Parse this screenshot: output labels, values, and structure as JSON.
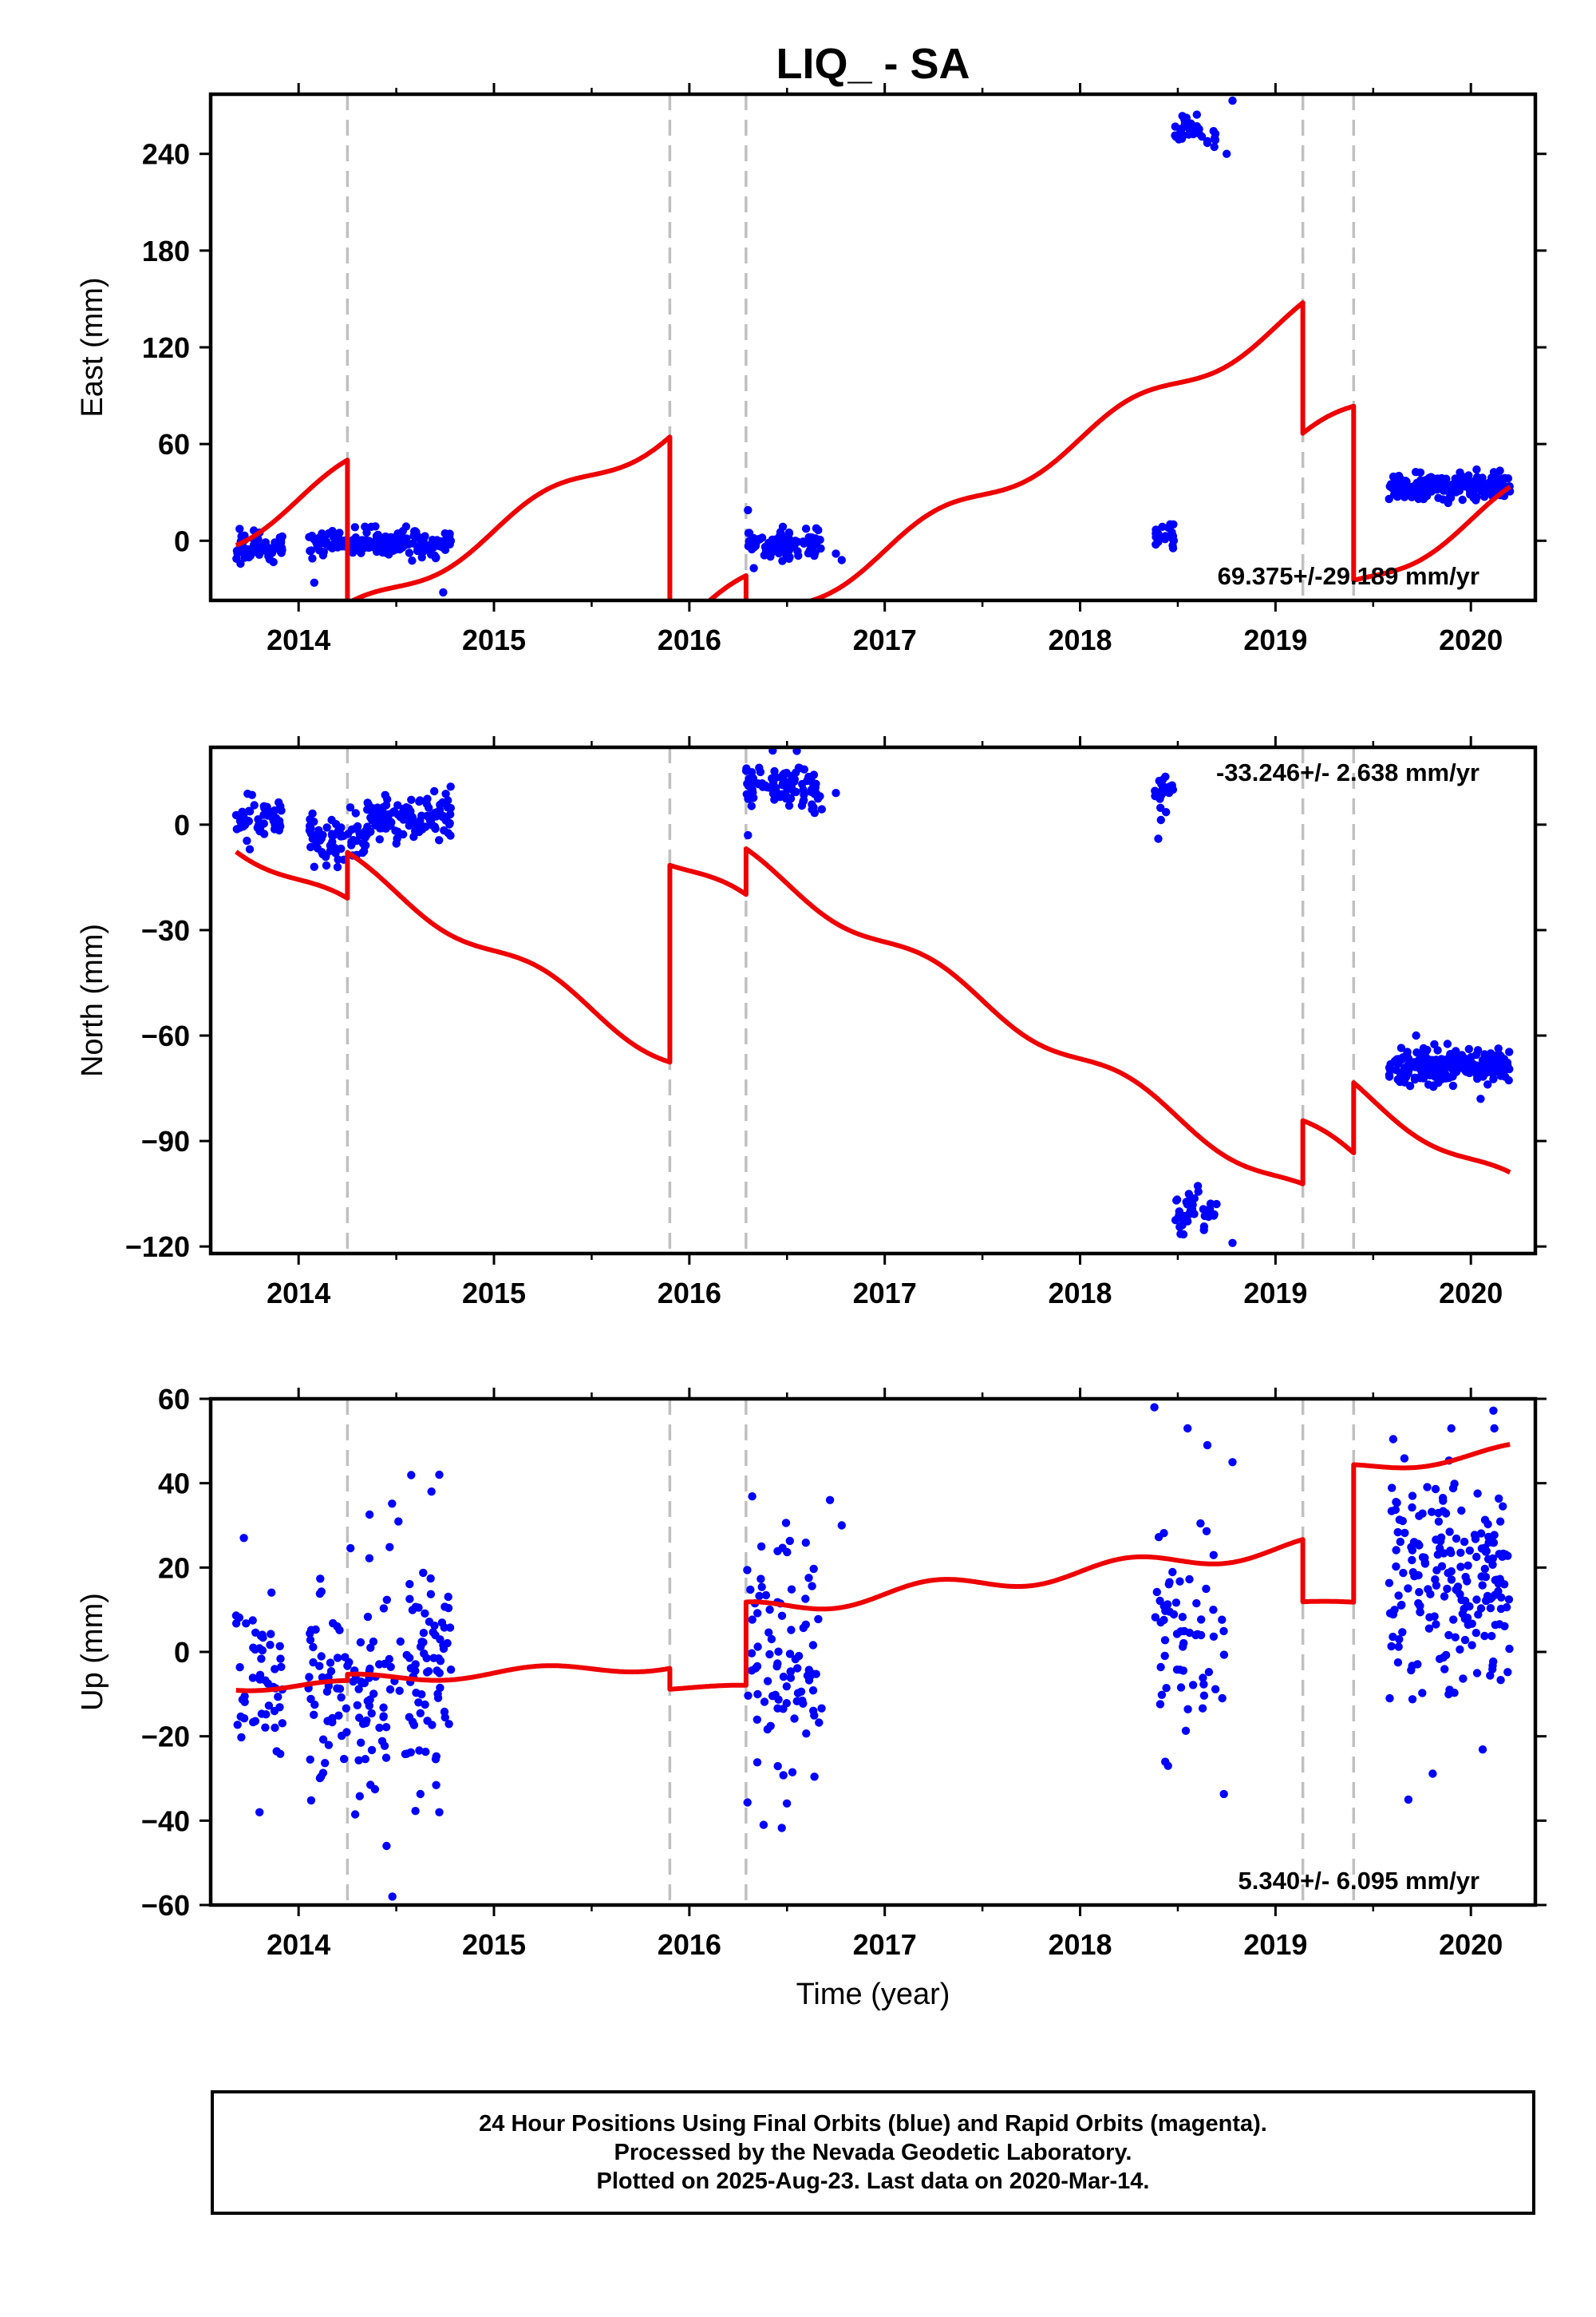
{
  "title": "LIQ_ - SA",
  "xlabel": "Time (year)",
  "colors": {
    "data": "#0000ff",
    "model": "#ee0000",
    "steps": "#c0c0c0",
    "frame": "#000000"
  },
  "chart_data": [
    {
      "type": "scatter",
      "ylabel": "East (mm)",
      "ylim": [
        -37,
        277
      ],
      "yticks": [
        0,
        60,
        120,
        180,
        240
      ],
      "ytick_labels": [
        "0",
        "60",
        "120",
        "180",
        "240"
      ],
      "xlim": [
        2013.55,
        2020.33
      ],
      "xticks": [
        2014,
        2015,
        2016,
        2017,
        2018,
        2019,
        2020
      ],
      "xtick_labels": [
        "2014",
        "2015",
        "2016",
        "2017",
        "2018",
        "2019",
        "2020"
      ],
      "step_epochs": [
        2014.25,
        2015.9,
        2016.29,
        2019.14,
        2019.4
      ],
      "rate_label": "69.375+/-29.189 mm/yr",
      "rate_position": "bottom-right",
      "data_clusters": [
        {
          "x0": 2013.68,
          "x1": 2013.92,
          "y": -3,
          "spread": 4.5,
          "n": 55,
          "outliers": []
        },
        {
          "x0": 2014.05,
          "x1": 2014.35,
          "y": -2,
          "spread": 4,
          "n": 70,
          "outliers": [
            [
              2014.08,
              -26
            ]
          ]
        },
        {
          "x0": 2014.35,
          "x1": 2014.78,
          "y": -2,
          "spread": 4,
          "n": 110,
          "outliers": [
            [
              2014.74,
              -32
            ]
          ]
        },
        {
          "x0": 2016.29,
          "x1": 2016.68,
          "y": -2,
          "spread": 4.5,
          "n": 90,
          "outliers": [
            [
              2016.3,
              19
            ],
            [
              2016.33,
              -17
            ],
            [
              2016.75,
              -8
            ],
            [
              2016.78,
              -12
            ]
          ]
        },
        {
          "x0": 2018.38,
          "x1": 2018.48,
          "y": 3,
          "spread": 4,
          "n": 22,
          "outliers": []
        },
        {
          "x0": 2018.48,
          "x1": 2018.7,
          "y": 254,
          "spread": 5,
          "n": 40,
          "outliers": [
            [
              2018.78,
              273
            ],
            [
              2018.75,
              240
            ]
          ]
        },
        {
          "x0": 2019.58,
          "x1": 2020.2,
          "y": 34,
          "spread": 4,
          "n": 230,
          "outliers": []
        }
      ],
      "model_segments": [
        {
          "x0": 2013.68,
          "x1": 2014.25,
          "offset": -9,
          "rate": 69.375,
          "amp": 7,
          "phase": 0.0
        },
        {
          "x0": 2014.25,
          "x1": 2015.9,
          "offset": -98,
          "rate": 69.375,
          "amp": 7,
          "phase": 0.0
        },
        {
          "x0": 2015.9,
          "x1": 2016.29,
          "offset": -222,
          "rate": 69.375,
          "amp": 7,
          "phase": 0.0
        },
        {
          "x0": 2016.29,
          "x1": 2019.14,
          "offset": -249,
          "rate": 69.375,
          "amp": 7,
          "phase": 0.0
        },
        {
          "x0": 2019.14,
          "x1": 2019.4,
          "offset": -330,
          "rate": 69.375,
          "amp": 7,
          "phase": 0.0
        },
        {
          "x0": 2019.4,
          "x1": 2020.2,
          "offset": -438,
          "rate": 69.375,
          "amp": 7,
          "phase": 0.0
        }
      ]
    },
    {
      "type": "scatter",
      "ylabel": "North (mm)",
      "ylim": [
        -122,
        22
      ],
      "yticks": [
        -120,
        -90,
        -60,
        -30,
        0
      ],
      "ytick_labels": [
        "−120",
        "−90",
        "−60",
        "−30",
        "0"
      ],
      "xlim": [
        2013.55,
        2020.33
      ],
      "xticks": [
        2014,
        2015,
        2016,
        2017,
        2018,
        2019,
        2020
      ],
      "xtick_labels": [
        "2014",
        "2015",
        "2016",
        "2017",
        "2018",
        "2019",
        "2020"
      ],
      "step_epochs": [
        2014.25,
        2015.9,
        2016.29,
        2019.14,
        2019.4
      ],
      "rate_label": "-33.246+/- 2.638 mm/yr",
      "rate_position": "top-right",
      "data_clusters": [
        {
          "x0": 2013.68,
          "x1": 2013.92,
          "y": 2,
          "spread": 2.5,
          "n": 55,
          "outliers": [
            [
              2013.75,
              -7
            ]
          ]
        },
        {
          "x0": 2014.05,
          "x1": 2014.35,
          "y": -4,
          "spread": 3,
          "n": 70,
          "outliers": [
            [
              2014.08,
              -12
            ]
          ]
        },
        {
          "x0": 2014.35,
          "x1": 2014.78,
          "y": 2,
          "spread": 3,
          "n": 110,
          "outliers": []
        },
        {
          "x0": 2016.29,
          "x1": 2016.68,
          "y": 10,
          "spread": 3,
          "n": 90,
          "outliers": [
            [
              2016.3,
              -3
            ],
            [
              2016.55,
              21
            ],
            [
              2016.75,
              9
            ]
          ]
        },
        {
          "x0": 2018.38,
          "x1": 2018.48,
          "y": 9,
          "spread": 3,
          "n": 22,
          "outliers": [
            [
              2018.4,
              -4
            ]
          ]
        },
        {
          "x0": 2018.48,
          "x1": 2018.7,
          "y": -110,
          "spread": 3,
          "n": 40,
          "outliers": [
            [
              2018.78,
              -119
            ]
          ]
        },
        {
          "x0": 2019.58,
          "x1": 2020.2,
          "y": -69,
          "spread": 2.5,
          "n": 230,
          "outliers": [
            [
              2019.72,
              -60
            ],
            [
              2020.05,
              -78
            ]
          ]
        }
      ],
      "model_segments": [
        {
          "x0": 2013.68,
          "x1": 2014.25,
          "offset": 1,
          "rate": -33.246,
          "amp": 3,
          "phase": 0.0
        },
        {
          "x0": 2014.25,
          "x1": 2015.9,
          "offset": 14,
          "rate": -33.246,
          "amp": 3,
          "phase": 0.0
        },
        {
          "x0": 2015.9,
          "x1": 2016.29,
          "offset": 70,
          "rate": -33.246,
          "amp": 3,
          "phase": 0.0
        },
        {
          "x0": 2016.29,
          "x1": 2019.14,
          "offset": 83,
          "rate": -33.246,
          "amp": 3,
          "phase": 0.0
        },
        {
          "x0": 2019.14,
          "x1": 2019.4,
          "offset": 101,
          "rate": -33.246,
          "amp": 3,
          "phase": 0.0
        },
        {
          "x0": 2019.4,
          "x1": 2020.2,
          "offset": 121,
          "rate": -33.246,
          "amp": 3,
          "phase": 0.0
        }
      ]
    },
    {
      "type": "scatter",
      "ylabel": "Up (mm)",
      "ylim": [
        -60,
        60
      ],
      "yticks": [
        -60,
        -40,
        -20,
        0,
        20,
        40,
        60
      ],
      "ytick_labels": [
        "−60",
        "−40",
        "−20",
        "0",
        "20",
        "40",
        "60"
      ],
      "xlim": [
        2013.55,
        2020.33
      ],
      "xticks": [
        2014,
        2015,
        2016,
        2017,
        2018,
        2019,
        2020
      ],
      "xtick_labels": [
        "2014",
        "2015",
        "2016",
        "2017",
        "2018",
        "2019",
        "2020"
      ],
      "step_epochs": [
        2014.25,
        2015.9,
        2016.29,
        2019.14,
        2019.4
      ],
      "rate_label": "5.340+/- 6.095 mm/yr",
      "rate_position": "bottom-right",
      "data_clusters": [
        {
          "x0": 2013.68,
          "x1": 2013.92,
          "y": -4,
          "spread": 13,
          "n": 50,
          "outliers": [
            [
              2013.8,
              -38
            ],
            [
              2013.72,
              27
            ]
          ]
        },
        {
          "x0": 2014.05,
          "x1": 2014.35,
          "y": -8,
          "spread": 12,
          "n": 70,
          "outliers": [
            [
              2014.45,
              -46
            ],
            [
              2014.48,
              -58
            ]
          ]
        },
        {
          "x0": 2014.35,
          "x1": 2014.78,
          "y": -2,
          "spread": 14,
          "n": 110,
          "outliers": [
            [
              2014.72,
              42
            ],
            [
              2014.68,
              38
            ],
            [
              2014.72,
              -38
            ]
          ]
        },
        {
          "x0": 2016.29,
          "x1": 2016.68,
          "y": -3,
          "spread": 15,
          "n": 90,
          "outliers": [
            [
              2016.38,
              -41
            ],
            [
              2016.72,
              36
            ],
            [
              2016.78,
              30
            ]
          ]
        },
        {
          "x0": 2018.38,
          "x1": 2018.48,
          "y": 2,
          "spread": 14,
          "n": 22,
          "outliers": [
            [
              2018.38,
              58
            ]
          ]
        },
        {
          "x0": 2018.48,
          "x1": 2018.78,
          "y": 4,
          "spread": 13,
          "n": 40,
          "outliers": [
            [
              2018.55,
              53
            ],
            [
              2018.78,
              45
            ],
            [
              2018.45,
              -27
            ]
          ]
        },
        {
          "x0": 2019.58,
          "x1": 2020.2,
          "y": 17,
          "spread": 14,
          "n": 200,
          "outliers": [
            [
              2019.68,
              -35
            ],
            [
              2019.9,
              53
            ],
            [
              2020.12,
              53
            ]
          ]
        }
      ],
      "model_segments": [
        {
          "x0": 2013.68,
          "x1": 2014.25,
          "offset": -8,
          "rate": 0,
          "amp": 1.2,
          "phase": 0.0
        },
        {
          "x0": 2014.25,
          "x1": 2015.9,
          "offset": -8,
          "rate": 2.0,
          "amp": 1.2,
          "phase": 0.0
        },
        {
          "x0": 2015.9,
          "x1": 2016.29,
          "offset": -8.5,
          "rate": 0,
          "amp": 0.6,
          "phase": 0.0
        },
        {
          "x0": 2016.29,
          "x1": 2019.14,
          "offset": -5,
          "rate": 5.34,
          "amp": 2.0,
          "phase": 0.0
        },
        {
          "x0": 2019.14,
          "x1": 2019.4,
          "offset": 11.5,
          "rate": 0,
          "amp": 0.5,
          "phase": 0.0
        },
        {
          "x0": 2019.4,
          "x1": 2020.2,
          "offset": 12,
          "rate": 5.34,
          "amp": 1.5,
          "phase": 0.0
        }
      ]
    }
  ],
  "footer": {
    "line1": "24 Hour Positions Using Final Orbits (blue) and Rapid Orbits (magenta).",
    "line2": "Processed by the Nevada Geodetic Laboratory.",
    "line3": "Plotted on 2025-Aug-23. Last data on 2020-Mar-14."
  }
}
